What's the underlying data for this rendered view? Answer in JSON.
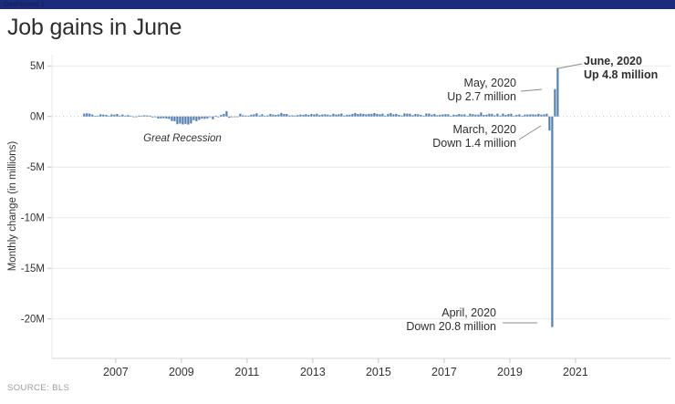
{
  "titlebar": {
    "label": "Dashboard 1"
  },
  "title": "Job gains in June",
  "source_note": "SOURCE: BLS",
  "chart_data": {
    "type": "bar",
    "title": "Job gains in June",
    "xlabel": "",
    "ylabel": "Monthly change (in millions)",
    "unit": "millions of jobs, monthly change",
    "grid": true,
    "xticks": [
      2007,
      2009,
      2011,
      2013,
      2015,
      2017,
      2019,
      2021
    ],
    "yticks": [
      {
        "label": "5M",
        "value": 5
      },
      {
        "label": "0M",
        "value": 0
      },
      {
        "label": "-5M",
        "value": -5
      },
      {
        "label": "-10M",
        "value": -10
      },
      {
        "label": "-15M",
        "value": -15
      },
      {
        "label": "-20M",
        "value": -20
      }
    ],
    "xlim": [
      2005.06,
      2023.89
    ],
    "ylim": [
      -23.9,
      6.1
    ],
    "series": {
      "name": "Monthly change in U.S. jobs",
      "start_year": 2006,
      "start_month": 1,
      "values": [
        0.28,
        0.32,
        0.28,
        0.18,
        0.02,
        0.08,
        0.21,
        0.18,
        0.16,
        0.02,
        0.21,
        0.17,
        0.24,
        0.09,
        0.19,
        0.08,
        0.14,
        0.07,
        -0.03,
        -0.02,
        0.09,
        0.08,
        0.12,
        0.1,
        0.01,
        -0.09,
        -0.05,
        -0.21,
        -0.19,
        -0.17,
        -0.21,
        -0.24,
        -0.45,
        -0.47,
        -0.77,
        -0.7,
        -0.79,
        -0.73,
        -0.8,
        -0.69,
        -0.36,
        -0.47,
        -0.33,
        -0.22,
        -0.23,
        -0.2,
        -0.01,
        -0.28,
        0.01,
        -0.08,
        0.16,
        0.25,
        0.52,
        -0.13,
        -0.07,
        -0.04,
        -0.05,
        0.26,
        0.12,
        0.09,
        0.07,
        0.17,
        0.21,
        0.32,
        0.1,
        0.22,
        0.07,
        0.11,
        0.25,
        0.18,
        0.16,
        0.2,
        0.34,
        0.24,
        0.24,
        0.1,
        0.11,
        0.09,
        0.14,
        0.18,
        0.16,
        0.23,
        0.15,
        0.24,
        0.2,
        0.27,
        0.14,
        0.2,
        0.22,
        0.18,
        0.13,
        0.27,
        0.19,
        0.22,
        0.29,
        0.09,
        0.17,
        0.17,
        0.25,
        0.33,
        0.24,
        0.29,
        0.25,
        0.21,
        0.26,
        0.25,
        0.33,
        0.26,
        0.22,
        0.27,
        0.08,
        0.25,
        0.33,
        0.21,
        0.26,
        0.15,
        0.1,
        0.31,
        0.28,
        0.27,
        0.13,
        0.24,
        0.22,
        0.15,
        0.04,
        0.29,
        0.29,
        0.18,
        0.25,
        0.12,
        0.16,
        0.2,
        0.23,
        0.22,
        0.07,
        0.18,
        0.15,
        0.24,
        0.19,
        0.21,
        0.01,
        0.27,
        0.22,
        0.17,
        0.18,
        0.4,
        0.15,
        0.18,
        0.27,
        0.25,
        0.12,
        0.28,
        0.09,
        0.28,
        0.15,
        0.23,
        0.27,
        0.0,
        0.15,
        0.21,
        0.06,
        0.18,
        0.19,
        0.21,
        0.21,
        0.18,
        0.26,
        0.18,
        0.21,
        0.27,
        -1.4,
        -20.8,
        2.7,
        4.8
      ]
    },
    "highlighted_points": [
      {
        "month": "March 2020",
        "value": -1.4
      },
      {
        "month": "April 2020",
        "value": -20.8
      },
      {
        "month": "May 2020",
        "value": 2.7
      },
      {
        "month": "June 2020",
        "value": 4.8
      }
    ],
    "annotations": {
      "june": {
        "line1": "June, 2020",
        "line2": "Up 4.8 million"
      },
      "may": {
        "line1": "May, 2020",
        "line2": "Up 2.7 million"
      },
      "march": {
        "line1": "March, 2020",
        "line2": "Down 1.4 million"
      },
      "april": {
        "line1": "April, 2020",
        "line2": "Down 20.8 million"
      },
      "recession": "Great Recession"
    },
    "legend": null,
    "colors": {
      "bar": "#5580ad",
      "grid": "#e9e9e9",
      "zero_line": "#b9c0cc",
      "axis_line": "#d4d4d4",
      "tick": "#c4c4c4",
      "axis_text": "#333333",
      "connector": "#8a8a8a",
      "titlebar": "#1c2b7c"
    }
  }
}
